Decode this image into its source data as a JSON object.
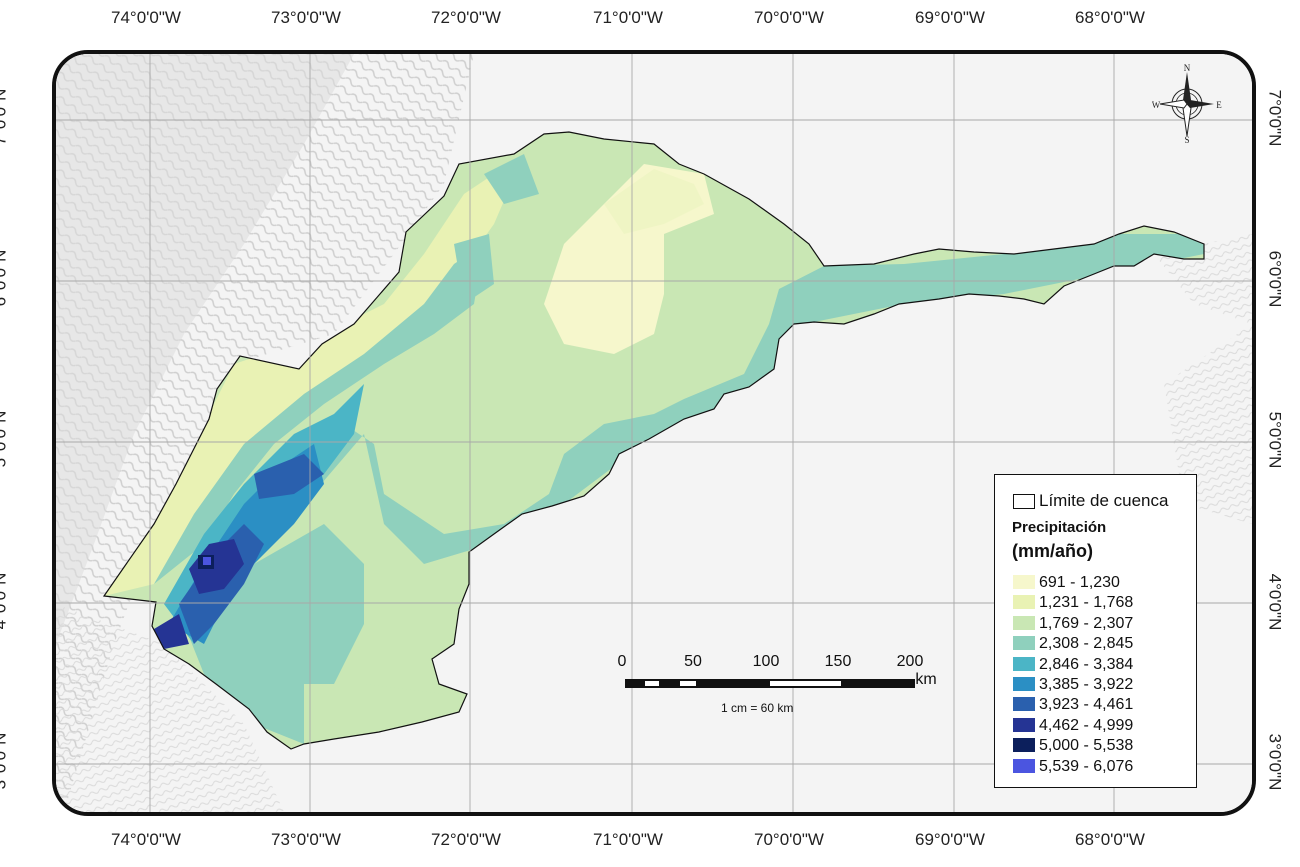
{
  "longitude_labels": [
    "74°0'0\"W",
    "73°0'0\"W",
    "72°0'0\"W",
    "71°0'0\"W",
    "70°0'0\"W",
    "69°0'0\"W",
    "68°0'0\"W"
  ],
  "latitude_labels": [
    "7°0'0\"N",
    "6°0'0\"N",
    "5°0'0\"N",
    "4°0'0\"N",
    "3°0'0\"N"
  ],
  "legend": {
    "boundary_label": "Límite de cuenca",
    "title_line1": "Precipitación",
    "title_line2": "(mm/año)",
    "classes": [
      {
        "label": "691 - 1,230",
        "color": "#f6f7cc"
      },
      {
        "label": "1,231 - 1,768",
        "color": "#e9f2b4"
      },
      {
        "label": "1,769 - 2,307",
        "color": "#c9e7b4"
      },
      {
        "label": "2,308 - 2,845",
        "color": "#8fd0bd"
      },
      {
        "label": "2,846 - 3,384",
        "color": "#4bb5c6"
      },
      {
        "label": "3,385 - 3,922",
        "color": "#2b8fc4"
      },
      {
        "label": "3,923 - 4,461",
        "color": "#2a60ae"
      },
      {
        "label": "4,462 - 4,999",
        "color": "#253494"
      },
      {
        "label": "5,000 - 5,538",
        "color": "#0c1f5c"
      },
      {
        "label": "5,539 - 6,076",
        "color": "#4b55e0"
      }
    ]
  },
  "scale_bar": {
    "labels": [
      "0",
      "50",
      "100",
      "150",
      "200"
    ],
    "unit": "km",
    "ratio": "1 cm = 60 km"
  },
  "north_arrow": {
    "icon": "compass-rose-icon",
    "letters": {
      "n": "N",
      "s": "S",
      "e": "E",
      "w": "W"
    }
  }
}
